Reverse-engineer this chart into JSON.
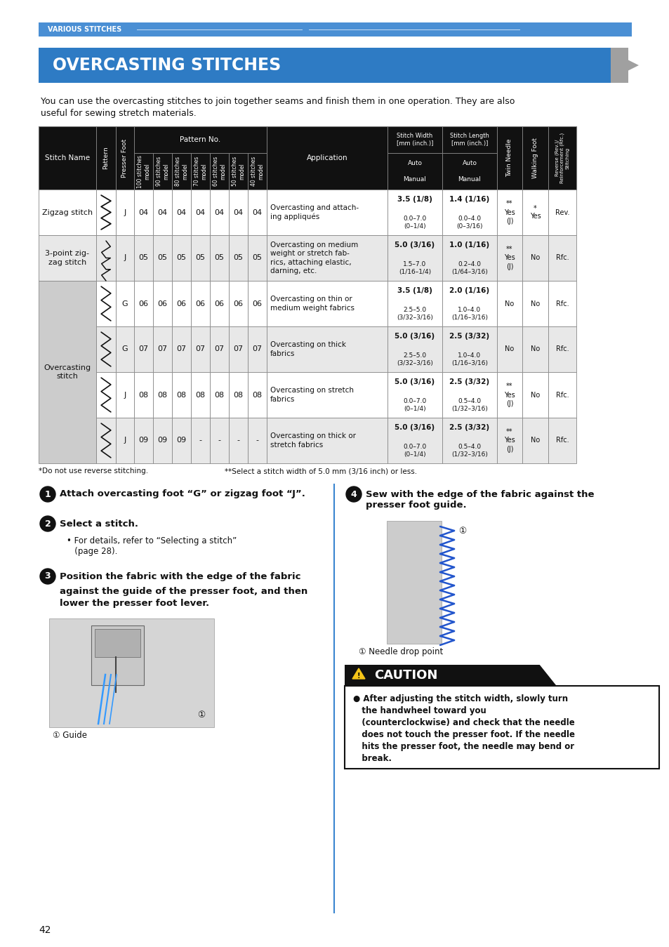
{
  "page_bg": "#ffffff",
  "top_bar_color": "#4a8fd4",
  "top_bar_text": "VARIOUS STITCHES",
  "top_bar_text_color": "#ffffff",
  "title_bg": "#2e7bc4",
  "title_text": "OVERCASTING STITCHES",
  "title_text_color": "#ffffff",
  "intro_text1": "You can use the overcasting stitches to join together seams and finish them in one operation. They are also",
  "intro_text2": "useful for sewing stretch materials.",
  "table_header_bg": "#111111",
  "table_header_text_color": "#ffffff",
  "table_border_color": "#888888",
  "footnote1": "*Do not use reverse stitching.",
  "footnote2": "**Select a stitch width of 5.0 mm (3/16 inch) or less.",
  "step1_text": "Attach overcasting foot “G” or zigzag foot “J”.",
  "step2_text": "Select a stitch.",
  "step2_sub1": "• For details, refer to “Selecting a stitch”",
  "step2_sub2": "   (page 28).",
  "step3_text1": "Position the fabric with the edge of the fabric",
  "step3_text2": "against the guide of the presser foot, and then",
  "step3_text3": "lower the presser foot lever.",
  "step3_caption": "① Guide",
  "step4_text1": "Sew with the edge of the fabric against the",
  "step4_text2": "presser foot guide.",
  "step4_caption": "① Needle drop point",
  "caution_title": "CAUTION",
  "caution_text_lines": [
    "● After adjusting the stitch width, slowly turn",
    "   the handwheel toward you",
    "   (counterclockwise) and check that the needle",
    "   does not touch the presser foot. If the needle",
    "   hits the presser foot, the needle may bend or",
    "   break."
  ],
  "caution_bg": "#111111",
  "page_number": "42",
  "divider_color": "#3a85d0",
  "table_rows": [
    {
      "stitch_name": "Zigzag stitch",
      "row_span": 1,
      "presser": "J",
      "pattern_nums": [
        "04",
        "04",
        "04",
        "04",
        "04",
        "04",
        "04"
      ],
      "application": "Overcasting and attach-\ning appliqués",
      "sw_bold": "3.5 (1/8)",
      "sw_sub": "0.0–7.0\n(0–1/4)",
      "sl_bold": "1.4 (1/16)",
      "sl_sub": "0.0–4.0\n(0–3/16)",
      "twin": "**\nYes\n(J)",
      "walking": "*\nYes",
      "reverse": "Rev.",
      "row_bg": "#ffffff",
      "name_bg": "#ffffff",
      "name_row_index": 0
    },
    {
      "stitch_name": "3-point zig-\nzag stitch",
      "row_span": 1,
      "presser": "J",
      "pattern_nums": [
        "05",
        "05",
        "05",
        "05",
        "05",
        "05",
        "05"
      ],
      "application": "Overcasting on medium\nweight or stretch fab-\nrics, attaching elastic,\ndarning, etc.",
      "sw_bold": "5.0 (3/16)",
      "sw_sub": "1.5–7.0\n(1/16–1/4)",
      "sl_bold": "1.0 (1/16)",
      "sl_sub": "0.2–4.0\n(1/64–3/16)",
      "twin": "**\nYes\n(J)",
      "walking": "No",
      "reverse": "Rfc.",
      "row_bg": "#e8e8e8",
      "name_bg": "#e8e8e8",
      "name_row_index": 1
    },
    {
      "stitch_name": "",
      "row_span": 0,
      "presser": "G",
      "pattern_nums": [
        "06",
        "06",
        "06",
        "06",
        "06",
        "06",
        "06"
      ],
      "application": "Overcasting on thin or\nmedium weight fabrics",
      "sw_bold": "3.5 (1/8)",
      "sw_sub": "2.5–5.0\n(3/32–3/16)",
      "sl_bold": "2.0 (1/16)",
      "sl_sub": "1.0–4.0\n(1/16–3/16)",
      "twin": "No",
      "walking": "No",
      "reverse": "Rfc.",
      "row_bg": "#ffffff",
      "name_bg": "#cccccc",
      "name_row_index": 2
    },
    {
      "stitch_name": "Overcasting\nstitch",
      "row_span": 4,
      "presser": "G",
      "pattern_nums": [
        "07",
        "07",
        "07",
        "07",
        "07",
        "07",
        "07"
      ],
      "application": "Overcasting on thick\nfabrics",
      "sw_bold": "5.0 (3/16)",
      "sw_sub": "2.5–5.0\n(3/32–3/16)",
      "sl_bold": "2.5 (3/32)",
      "sl_sub": "1.0–4.0\n(1/16–3/16)",
      "twin": "No",
      "walking": "No",
      "reverse": "Rfc.",
      "row_bg": "#e8e8e8",
      "name_bg": "#cccccc",
      "name_row_index": 2
    },
    {
      "stitch_name": "",
      "row_span": 0,
      "presser": "J",
      "pattern_nums": [
        "08",
        "08",
        "08",
        "08",
        "08",
        "08",
        "08"
      ],
      "application": "Overcasting on stretch\nfabrics",
      "sw_bold": "5.0 (3/16)",
      "sw_sub": "0.0–7.0\n(0–1/4)",
      "sl_bold": "2.5 (3/32)",
      "sl_sub": "0.5–4.0\n(1/32–3/16)",
      "twin": "**\nYes\n(J)",
      "walking": "No",
      "reverse": "Rfc.",
      "row_bg": "#ffffff",
      "name_bg": "#cccccc",
      "name_row_index": 2
    },
    {
      "stitch_name": "",
      "row_span": 0,
      "presser": "J",
      "pattern_nums": [
        "09",
        "09",
        "09",
        "-",
        "-",
        "-",
        "-"
      ],
      "application": "Overcasting on thick or\nstretch fabrics",
      "sw_bold": "5.0 (3/16)",
      "sw_sub": "0.0–7.0\n(0–1/4)",
      "sl_bold": "2.5 (3/32)",
      "sl_sub": "0.5–4.0\n(1/32–3/16)",
      "twin": "**\nYes\n(J)",
      "walking": "No",
      "reverse": "Rfc.",
      "row_bg": "#e8e8e8",
      "name_bg": "#cccccc",
      "name_row_index": 2
    }
  ]
}
